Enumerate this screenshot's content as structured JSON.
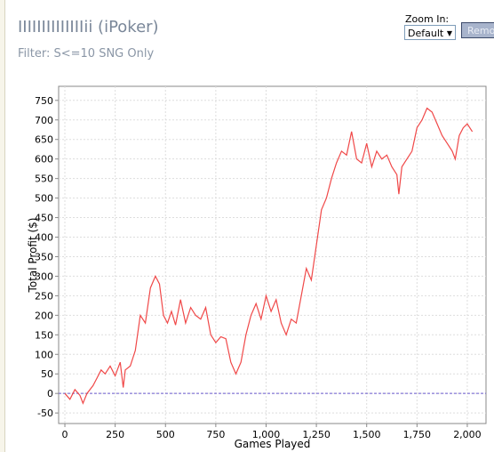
{
  "chart_data": {
    "type": "line",
    "title": "IIIIIIIIIIIIIIii (iPoker)",
    "subtitle": "Filter: S<=10 SNG Only",
    "x_label": "Games Played",
    "y_label": "Total Profit ($)",
    "x": [
      0,
      25,
      50,
      75,
      90,
      110,
      140,
      160,
      180,
      200,
      225,
      250,
      275,
      290,
      300,
      325,
      350,
      375,
      400,
      425,
      450,
      470,
      490,
      510,
      530,
      550,
      575,
      600,
      625,
      650,
      675,
      700,
      725,
      750,
      775,
      800,
      825,
      850,
      875,
      900,
      925,
      950,
      975,
      1000,
      1025,
      1050,
      1075,
      1100,
      1125,
      1150,
      1175,
      1200,
      1225,
      1250,
      1275,
      1300,
      1325,
      1350,
      1375,
      1400,
      1425,
      1450,
      1475,
      1500,
      1525,
      1550,
      1575,
      1600,
      1625,
      1650,
      1660,
      1675,
      1700,
      1725,
      1750,
      1775,
      1800,
      1825,
      1850,
      1875,
      1900,
      1925,
      1940,
      1960,
      1980,
      2000,
      2025
    ],
    "series": [
      {
        "color": "#f04848",
        "values": [
          0,
          -15,
          10,
          -5,
          -25,
          0,
          20,
          40,
          60,
          50,
          70,
          45,
          80,
          15,
          60,
          70,
          110,
          200,
          180,
          270,
          300,
          280,
          200,
          180,
          210,
          175,
          240,
          180,
          220,
          200,
          190,
          220,
          150,
          130,
          145,
          140,
          80,
          50,
          80,
          150,
          200,
          230,
          190,
          250,
          210,
          240,
          180,
          150,
          190,
          180,
          250,
          320,
          290,
          380,
          470,
          500,
          550,
          590,
          620,
          610,
          670,
          600,
          590,
          640,
          580,
          620,
          600,
          610,
          580,
          560,
          510,
          580,
          600,
          620,
          680,
          700,
          730,
          720,
          690,
          660,
          640,
          620,
          600,
          660,
          680,
          690,
          670
        ]
      }
    ],
    "xlim": [
      -31,
      2093
    ],
    "ylim": [
      -77,
      786
    ],
    "xticks": [
      0,
      250,
      500,
      750,
      {
        "value": 1000,
        "label": "1,000"
      },
      {
        "value": 1250,
        "label": "1,250"
      },
      {
        "value": 1500,
        "label": "1,500"
      },
      {
        "value": 1750,
        "label": "1,750"
      },
      {
        "value": 2000,
        "label": "2,000"
      }
    ],
    "yticks": [
      -50,
      0,
      50,
      100,
      150,
      200,
      250,
      300,
      350,
      400,
      450,
      500,
      550,
      600,
      650,
      700,
      750
    ],
    "grid": true,
    "reference_line": 0,
    "reference_color": "#6a5acd"
  },
  "controls": {
    "zoom_label": "Zoom In:",
    "zoom_value": "Default",
    "button": "Remove"
  }
}
